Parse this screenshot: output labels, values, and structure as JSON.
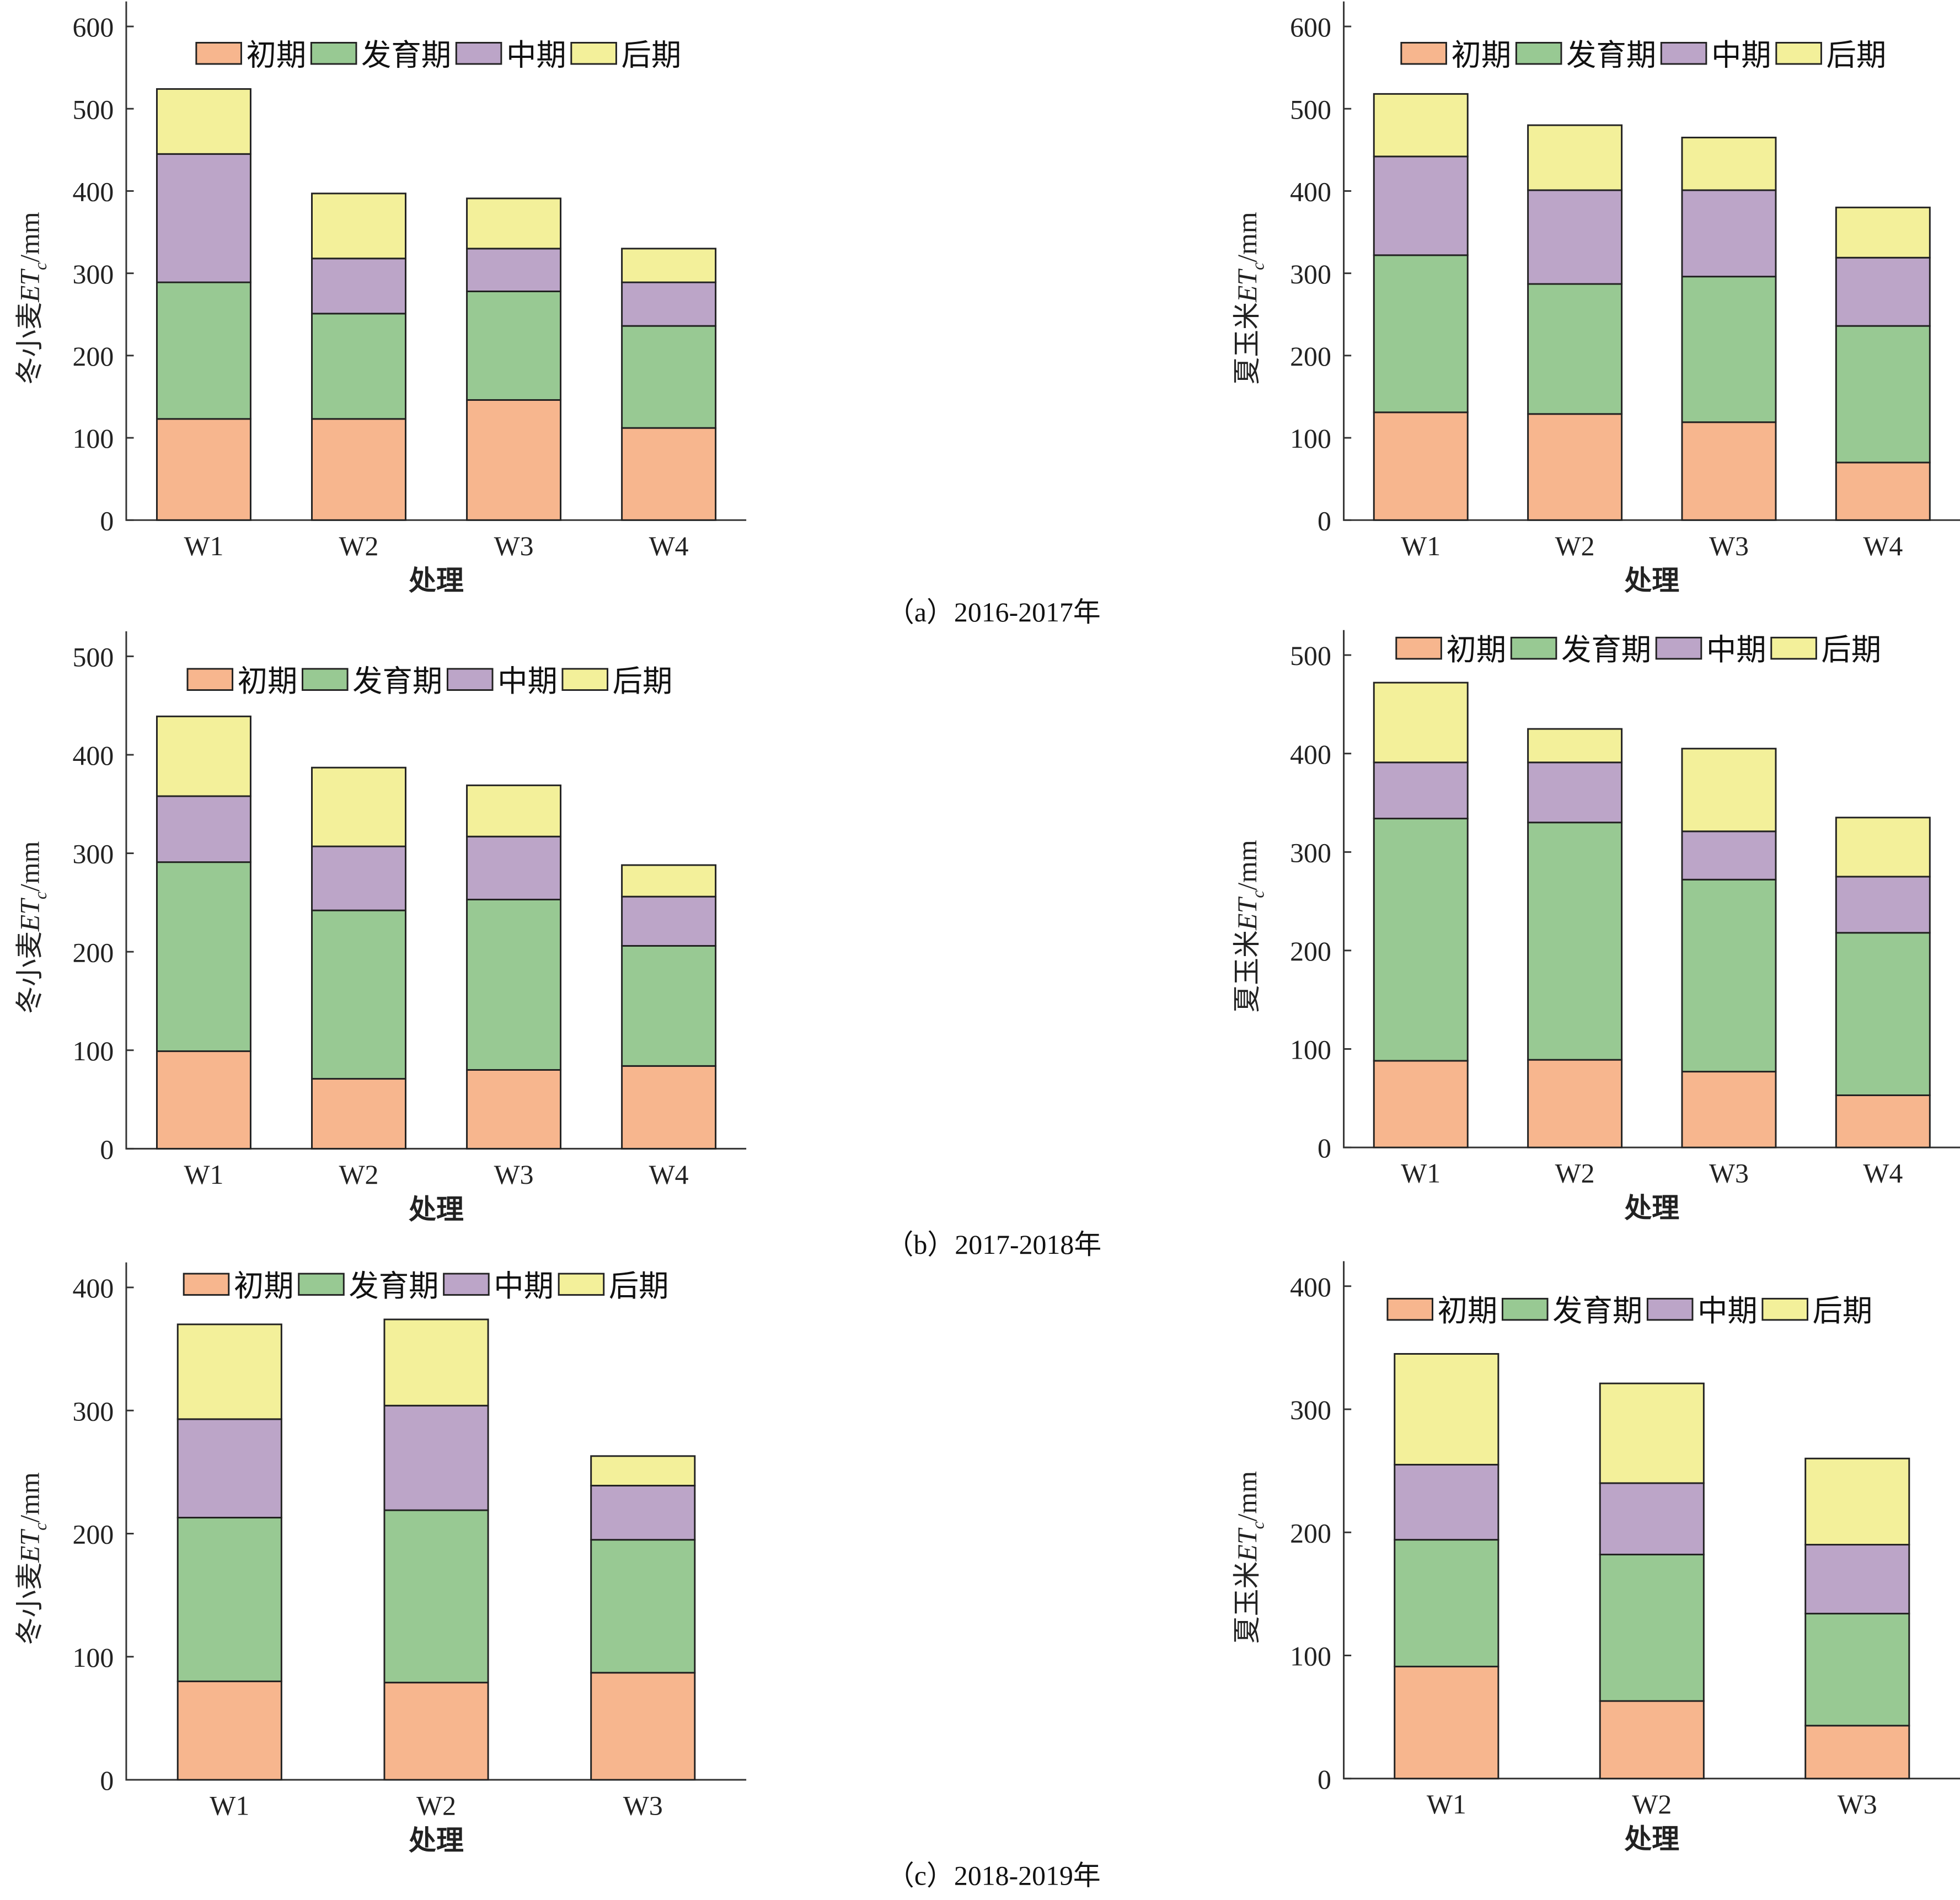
{
  "colors": {
    "初期": "#F7B68E",
    "发育期": "#98C993",
    "中期": "#BCA5C8",
    "后期": "#F3F09A"
  },
  "stages": [
    "初期",
    "发育期",
    "中期",
    "后期"
  ],
  "xlabel": "处理",
  "captions": [
    "（a）2016-2017年",
    "（b）2017-2018年",
    "（c）2018-2019年"
  ],
  "chart_data": [
    {
      "type": "bar",
      "stacked": true,
      "crop": "冬小麦",
      "ylabel": {
        "pre": "冬小麦",
        "et": "ET",
        "sub": "c",
        "unit": "/mm"
      },
      "ylim": [
        0,
        600
      ],
      "yticks": [
        0,
        100,
        200,
        300,
        400,
        500,
        600
      ],
      "legend": "top",
      "categories": [
        "W1",
        "W2",
        "W3",
        "W4"
      ],
      "series": [
        {
          "name": "初期",
          "values": [
            123,
            123,
            146,
            112
          ]
        },
        {
          "name": "发育期",
          "values": [
            166,
            128,
            132,
            124
          ]
        },
        {
          "name": "中期",
          "values": [
            156,
            67,
            52,
            53
          ]
        },
        {
          "name": "后期",
          "values": [
            79,
            79,
            61,
            41
          ]
        }
      ]
    },
    {
      "type": "bar",
      "stacked": true,
      "crop": "夏玉米",
      "ylabel": {
        "pre": "夏玉米",
        "et": "ET",
        "sub": "c",
        "unit": "/mm"
      },
      "ylim": [
        0,
        600
      ],
      "yticks": [
        0,
        100,
        200,
        300,
        400,
        500,
        600
      ],
      "legend": "top",
      "categories": [
        "W1",
        "W2",
        "W3",
        "W4"
      ],
      "series": [
        {
          "name": "初期",
          "values": [
            131,
            129,
            119,
            70
          ]
        },
        {
          "name": "发育期",
          "values": [
            191,
            158,
            177,
            166
          ]
        },
        {
          "name": "中期",
          "values": [
            120,
            114,
            105,
            83
          ]
        },
        {
          "name": "后期",
          "values": [
            76,
            79,
            64,
            61
          ]
        }
      ]
    },
    {
      "type": "bar",
      "stacked": true,
      "crop": "冬小麦",
      "ylabel": {
        "pre": "冬小麦",
        "et": "ET",
        "sub": "c",
        "unit": "/mm"
      },
      "ylim": [
        0,
        500
      ],
      "yticks": [
        0,
        100,
        200,
        300,
        400,
        500
      ],
      "legend": "top",
      "categories": [
        "W1",
        "W2",
        "W3",
        "W4"
      ],
      "series": [
        {
          "name": "初期",
          "values": [
            99,
            71,
            80,
            84
          ]
        },
        {
          "name": "发育期",
          "values": [
            192,
            171,
            173,
            122
          ]
        },
        {
          "name": "中期",
          "values": [
            67,
            65,
            64,
            50
          ]
        },
        {
          "name": "后期",
          "values": [
            81,
            80,
            52,
            32
          ]
        }
      ]
    },
    {
      "type": "bar",
      "stacked": true,
      "crop": "夏玉米",
      "ylabel": {
        "pre": "夏玉米",
        "et": "ET",
        "sub": "c",
        "unit": "/mm"
      },
      "ylim": [
        0,
        500
      ],
      "yticks": [
        0,
        100,
        200,
        300,
        400,
        500
      ],
      "legend": "top",
      "categories": [
        "W1",
        "W2",
        "W3",
        "W4"
      ],
      "series": [
        {
          "name": "初期",
          "values": [
            88,
            89,
            77,
            53
          ]
        },
        {
          "name": "发育期",
          "values": [
            246,
            241,
            195,
            165
          ]
        },
        {
          "name": "中期",
          "values": [
            57,
            61,
            49,
            57
          ]
        },
        {
          "name": "后期",
          "values": [
            81,
            34,
            84,
            60
          ]
        }
      ]
    },
    {
      "type": "bar",
      "stacked": true,
      "crop": "冬小麦",
      "ylabel": {
        "pre": "冬小麦",
        "et": "ET",
        "sub": "c",
        "unit": "/mm"
      },
      "ylim": [
        0,
        400
      ],
      "yticks": [
        0,
        100,
        200,
        300,
        400
      ],
      "legend": "top",
      "categories": [
        "W1",
        "W2",
        "W3"
      ],
      "series": [
        {
          "name": "初期",
          "values": [
            80,
            79,
            87
          ]
        },
        {
          "name": "发育期",
          "values": [
            133,
            140,
            108
          ]
        },
        {
          "name": "中期",
          "values": [
            80,
            85,
            44
          ]
        },
        {
          "name": "后期",
          "values": [
            77,
            70,
            24
          ]
        }
      ]
    },
    {
      "type": "bar",
      "stacked": true,
      "crop": "夏玉米",
      "ylabel": {
        "pre": "夏玉米",
        "et": "ET",
        "sub": "c",
        "unit": "/mm"
      },
      "ylim": [
        0,
        400
      ],
      "yticks": [
        0,
        100,
        200,
        300,
        400
      ],
      "legend": "top",
      "categories": [
        "W1",
        "W2",
        "W3"
      ],
      "series": [
        {
          "name": "初期",
          "values": [
            91,
            63,
            43
          ]
        },
        {
          "name": "发育期",
          "values": [
            103,
            119,
            91
          ]
        },
        {
          "name": "中期",
          "values": [
            61,
            58,
            56
          ]
        },
        {
          "name": "后期",
          "values": [
            90,
            81,
            70
          ]
        }
      ]
    }
  ]
}
